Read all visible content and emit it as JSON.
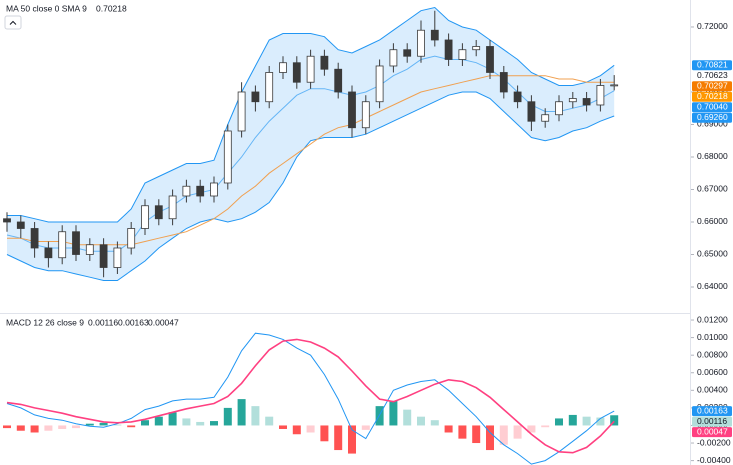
{
  "chart_data": [
    {
      "type": "candlestick",
      "legend": {
        "title": "MA 50 close 0 SMA 9",
        "value": "0.70218",
        "value_color": "#ff9800"
      },
      "open": [
        0.661,
        0.66,
        0.658,
        0.652,
        0.649,
        0.657,
        0.65,
        0.653,
        0.646,
        0.652,
        0.658,
        0.665,
        0.661,
        0.668,
        0.671,
        0.668,
        0.672,
        0.688,
        0.7,
        0.697,
        0.706,
        0.709,
        0.703,
        0.711,
        0.707,
        0.7,
        0.689,
        0.697,
        0.708,
        0.713,
        0.711,
        0.719,
        0.716,
        0.71,
        0.713,
        0.714,
        0.706,
        0.7,
        0.697,
        0.691,
        0.693,
        0.697,
        0.698,
        0.696,
        0.702
      ],
      "high": [
        0.663,
        0.662,
        0.66,
        0.654,
        0.659,
        0.659,
        0.655,
        0.655,
        0.654,
        0.66,
        0.667,
        0.667,
        0.67,
        0.673,
        0.673,
        0.674,
        0.69,
        0.703,
        0.702,
        0.708,
        0.711,
        0.711,
        0.713,
        0.713,
        0.709,
        0.702,
        0.699,
        0.71,
        0.715,
        0.715,
        0.722,
        0.725,
        0.718,
        0.715,
        0.716,
        0.716,
        0.708,
        0.702,
        0.699,
        0.695,
        0.699,
        0.7,
        0.7,
        0.704,
        0.7052
      ],
      "low": [
        0.657,
        0.655,
        0.649,
        0.646,
        0.647,
        0.648,
        0.648,
        0.643,
        0.644,
        0.65,
        0.656,
        0.659,
        0.659,
        0.666,
        0.666,
        0.666,
        0.67,
        0.686,
        0.694,
        0.695,
        0.704,
        0.701,
        0.701,
        0.705,
        0.698,
        0.686,
        0.687,
        0.695,
        0.706,
        0.709,
        0.709,
        0.714,
        0.708,
        0.708,
        0.711,
        0.704,
        0.698,
        0.695,
        0.688,
        0.689,
        0.691,
        0.695,
        0.694,
        0.694,
        0.7005
      ],
      "close": [
        0.66,
        0.658,
        0.652,
        0.649,
        0.657,
        0.65,
        0.653,
        0.646,
        0.652,
        0.658,
        0.665,
        0.661,
        0.668,
        0.671,
        0.668,
        0.672,
        0.688,
        0.7,
        0.697,
        0.706,
        0.709,
        0.703,
        0.711,
        0.707,
        0.7,
        0.689,
        0.697,
        0.708,
        0.713,
        0.711,
        0.719,
        0.716,
        0.71,
        0.713,
        0.714,
        0.706,
        0.7,
        0.697,
        0.691,
        0.693,
        0.697,
        0.698,
        0.696,
        0.702,
        0.70218
      ],
      "up_color": "#ffffff",
      "down_color": "#3a3a3a",
      "wick_color": "#3a3a3a",
      "band": {
        "color": "#2196f3",
        "fill": "#bbdefb",
        "upper": [
          0.662,
          0.662,
          0.661,
          0.66,
          0.66,
          0.66,
          0.66,
          0.66,
          0.66,
          0.664,
          0.672,
          0.674,
          0.676,
          0.678,
          0.678,
          0.679,
          0.69,
          0.7,
          0.708,
          0.716,
          0.718,
          0.718,
          0.718,
          0.717,
          0.713,
          0.712,
          0.714,
          0.716,
          0.719,
          0.722,
          0.725,
          0.726,
          0.722,
          0.72,
          0.719,
          0.716,
          0.713,
          0.71,
          0.706,
          0.704,
          0.702,
          0.702,
          0.703,
          0.705,
          0.70821
        ],
        "lower": [
          0.65,
          0.648,
          0.646,
          0.645,
          0.645,
          0.644,
          0.643,
          0.642,
          0.642,
          0.645,
          0.648,
          0.652,
          0.655,
          0.658,
          0.66,
          0.661,
          0.66,
          0.661,
          0.663,
          0.666,
          0.672,
          0.68,
          0.685,
          0.686,
          0.686,
          0.686,
          0.687,
          0.689,
          0.691,
          0.693,
          0.695,
          0.697,
          0.699,
          0.7,
          0.7,
          0.698,
          0.694,
          0.69,
          0.686,
          0.685,
          0.686,
          0.688,
          0.689,
          0.691,
          0.6926
        ]
      },
      "series": [
        {
          "color": "#64b5f6",
          "values": [
            0.656,
            0.655,
            0.653,
            0.652,
            0.652,
            0.652,
            0.651,
            0.651,
            0.651,
            0.654,
            0.66,
            0.663,
            0.665,
            0.668,
            0.669,
            0.67,
            0.675,
            0.68,
            0.686,
            0.691,
            0.695,
            0.699,
            0.701,
            0.701,
            0.7,
            0.699,
            0.7,
            0.702,
            0.705,
            0.707,
            0.71,
            0.711,
            0.71,
            0.71,
            0.709,
            0.707,
            0.704,
            0.7,
            0.696,
            0.694,
            0.694,
            0.695,
            0.696,
            0.698,
            0.7004
          ]
        },
        {
          "color": "#f0a050",
          "values": [
            0.655,
            0.655,
            0.654,
            0.654,
            0.654,
            0.653,
            0.653,
            0.653,
            0.653,
            0.653,
            0.654,
            0.655,
            0.656,
            0.657,
            0.659,
            0.661,
            0.664,
            0.668,
            0.671,
            0.675,
            0.678,
            0.681,
            0.684,
            0.687,
            0.689,
            0.69,
            0.692,
            0.694,
            0.696,
            0.698,
            0.7,
            0.701,
            0.702,
            0.703,
            0.704,
            0.705,
            0.705,
            0.705,
            0.705,
            0.705,
            0.704,
            0.704,
            0.703,
            0.703,
            0.70297
          ]
        }
      ],
      "ylim": [
        0.632,
        0.7283
      ],
      "yticks": [
        {
          "value": 0.64,
          "label": "0.64000"
        },
        {
          "value": 0.65,
          "label": "0.65000"
        },
        {
          "value": 0.66,
          "label": "0.66000"
        },
        {
          "value": 0.67,
          "label": "0.67000"
        },
        {
          "value": 0.68,
          "label": "0.68000"
        },
        {
          "value": 0.69,
          "label": "0.69000"
        },
        {
          "value": 0.7,
          "label": "0.70000"
        },
        {
          "value": 0.72,
          "label": "0.72000"
        }
      ],
      "price_labels": [
        {
          "value": 0.70821,
          "label": "0.70821",
          "color": "#2196f3",
          "text_color": "#ffffff"
        },
        {
          "value": 0.70623,
          "label": "0.70623",
          "color": "#ffffff",
          "text_color": "#131722"
        },
        {
          "value": 0.70297,
          "label": "0.70297",
          "color": "#f57c00",
          "text_color": "#ffffff"
        },
        {
          "value": 0.70218,
          "label": "0.70218",
          "color": "#ff9800",
          "text_color": "#ffffff"
        },
        {
          "value": 0.7004,
          "label": "0.70040",
          "color": "#2196f3",
          "text_color": "#ffffff"
        },
        {
          "value": 0.6926,
          "label": "0.69260",
          "color": "#2196f3",
          "text_color": "#ffffff"
        }
      ],
      "grid": false
    },
    {
      "type": "macd",
      "legend": {
        "title": "MACD 12 26 close 9",
        "values": [
          {
            "text": "0.00116",
            "color": "#80cbc4"
          },
          {
            "text": "0.00163",
            "color": "#2196f3"
          },
          {
            "text": "0.00047",
            "color": "#ff4081"
          }
        ]
      },
      "histogram": [
        -0.0003,
        -0.0006,
        -0.0008,
        -0.0006,
        -0.0004,
        -0.0003,
        0.0002,
        0.0003,
        0.0001,
        -0.0002,
        0.0006,
        0.001,
        0.0015,
        0.0008,
        0.0004,
        0.0005,
        0.002,
        0.003,
        0.0022,
        0.001,
        -0.0004,
        -0.001,
        -0.0008,
        -0.0018,
        -0.0028,
        -0.0032,
        -0.0005,
        0.0022,
        0.0028,
        0.0018,
        0.001,
        0.0006,
        -0.0008,
        -0.0015,
        -0.002,
        -0.0028,
        -0.0022,
        -0.0015,
        -0.0008,
        -0.0002,
        0.0008,
        0.0012,
        0.001,
        0.0009,
        0.00116
      ],
      "histogram_colors": {
        "up_grow": "#26a69a",
        "up_fall": "#b2dfdb",
        "down_grow": "#ff5252",
        "down_fall": "#ffcdd2"
      },
      "series": [
        {
          "color": "#2196f3",
          "values": [
            0.0025,
            0.002,
            0.0012,
            0.0008,
            0.0006,
            0.0002,
            -0.0001,
            -0.0002,
            0.0002,
            0.0008,
            0.0018,
            0.0022,
            0.0028,
            0.003,
            0.003,
            0.0032,
            0.0055,
            0.0085,
            0.0105,
            0.0103,
            0.0098,
            0.0088,
            0.008,
            0.0058,
            0.003,
            -0.0005,
            -0.0015,
            0.0012,
            0.004,
            0.0046,
            0.005,
            0.0052,
            0.004,
            0.0025,
            0.001,
            -0.0008,
            -0.0022,
            -0.0032,
            -0.0044,
            -0.004,
            -0.003,
            -0.0018,
            -0.0006,
            0.0008,
            0.00163
          ]
        },
        {
          "color": "#ff4081",
          "values": [
            0.0026,
            0.0024,
            0.002,
            0.0017,
            0.0014,
            0.001,
            0.0007,
            0.0004,
            0.0003,
            0.0004,
            0.0007,
            0.0011,
            0.0015,
            0.0019,
            0.0022,
            0.0025,
            0.0033,
            0.0048,
            0.0068,
            0.0086,
            0.0096,
            0.0098,
            0.0095,
            0.0088,
            0.0078,
            0.0062,
            0.0045,
            0.003,
            0.0027,
            0.0033,
            0.004,
            0.0047,
            0.0052,
            0.005,
            0.0043,
            0.0032,
            0.0018,
            0.0004,
            -0.001,
            -0.0022,
            -0.003,
            -0.0031,
            -0.0025,
            -0.0012,
            0.00047
          ]
        }
      ],
      "ylim": [
        -0.0045,
        0.0128
      ],
      "yticks": [
        {
          "value": -0.004,
          "label": "-0.00400"
        },
        {
          "value": -0.002,
          "label": "-0.00200"
        },
        {
          "value": 0,
          "label": "0.00000"
        },
        {
          "value": 0.002,
          "label": "0.00200"
        },
        {
          "value": 0.004,
          "label": "0.00400"
        },
        {
          "value": 0.006,
          "label": "0.00600"
        },
        {
          "value": 0.008,
          "label": "0.00800"
        },
        {
          "value": 0.01,
          "label": "0.01000"
        },
        {
          "value": 0.012,
          "label": "0.01200"
        }
      ],
      "price_labels": [
        {
          "value": 0.00163,
          "label": "0.00163",
          "color": "#2196f3",
          "text_color": "#ffffff"
        },
        {
          "value": 0.00116,
          "label": "0.00116",
          "color": "#b2dfdb",
          "text_color": "#131722"
        },
        {
          "value": 0.00047,
          "label": "0.00047",
          "color": "#ff4081",
          "text_color": "#ffffff"
        }
      ],
      "grid": false
    }
  ]
}
